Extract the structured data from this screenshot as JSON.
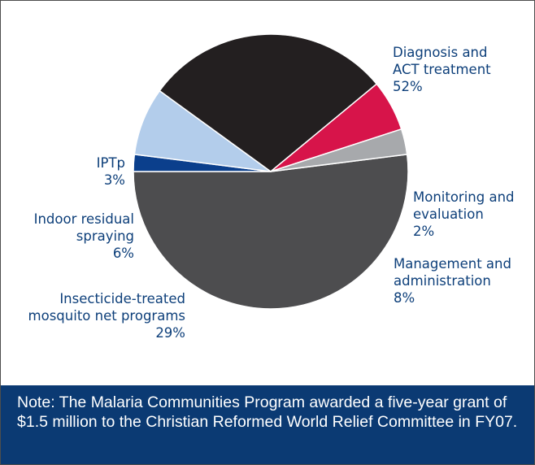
{
  "chart_data": {
    "type": "pie",
    "slices": [
      {
        "label_lines": [
          "Diagnosis and",
          "ACT treatment"
        ],
        "value": 52,
        "value_label": "52%",
        "color": "#4d4d4f"
      },
      {
        "label_lines": [
          "Monitoring and",
          "evaluation"
        ],
        "value": 2,
        "value_label": "2%",
        "color": "#0b3f8c"
      },
      {
        "label_lines": [
          "Management and",
          "administration"
        ],
        "value": 8,
        "value_label": "8%",
        "color": "#b3cdeb"
      },
      {
        "label_lines": [
          "Insecticide-treated",
          "mosquito net programs"
        ],
        "value": 29,
        "value_label": "29%",
        "color": "#231f20"
      },
      {
        "label_lines": [
          "Indoor residual",
          "spraying"
        ],
        "value": 6,
        "value_label": "6%",
        "color": "#d7144a"
      },
      {
        "label_lines": [
          "IPTp"
        ],
        "value": 3,
        "value_label": "3%",
        "color": "#a7a9ac"
      }
    ]
  },
  "note": "Note: The Malaria Communities Program awarded a five-year grant of $1.5 million to the Christian Reformed World Relief Committee in FY07."
}
